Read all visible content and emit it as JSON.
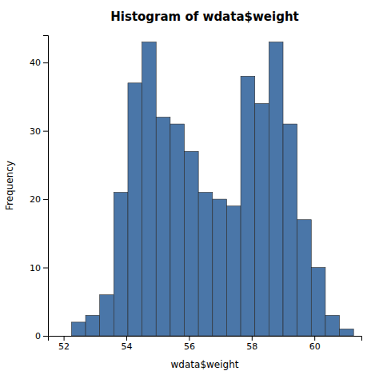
{
  "chart_data": {
    "type": "histogram",
    "title": "Histogram of wdata$weight",
    "xlabel": "wdata$weight",
    "ylabel": "Frequency",
    "bins": [
      52.25,
      52.7,
      53.15,
      53.6,
      54.05,
      54.5,
      54.95,
      55.4,
      55.85,
      56.3,
      56.75,
      57.2,
      57.65,
      58.1,
      58.55,
      59.0,
      59.45,
      59.9,
      60.35,
      60.8,
      61.25
    ],
    "values": [
      2,
      3,
      6,
      21,
      37,
      43,
      32,
      31,
      27,
      21,
      20,
      19,
      38,
      34,
      43,
      31,
      17,
      10,
      3,
      1
    ],
    "color": "#4a76a8",
    "xlim": [
      51.5,
      61.5
    ],
    "xticks": [
      52,
      54,
      56,
      58,
      60
    ],
    "ylim": [
      0,
      44
    ],
    "yticks": [
      0,
      10,
      20,
      30,
      40
    ],
    "grid": false
  }
}
